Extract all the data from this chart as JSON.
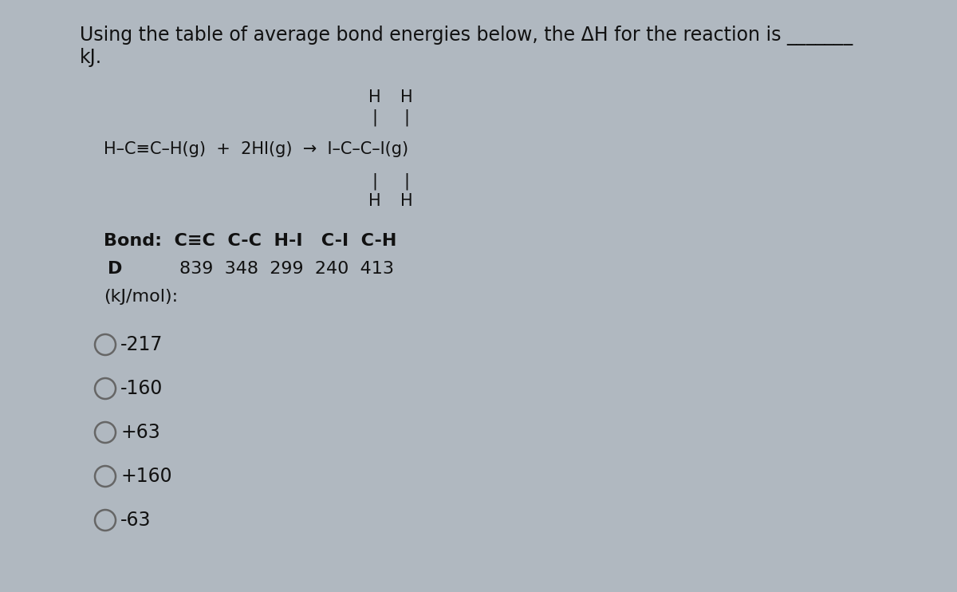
{
  "bg_outer": "#b0b8c0",
  "bg_inner": "#dde3e8",
  "text_color": "#111111",
  "title_line1": "Using the table of average bond energies below, the ΔH for the reaction is _______",
  "title_line2": "kJ.",
  "bond_row1": "Bond:  C≡C  C-C  H-I   C-I  C-H",
  "bond_row2_label": "D",
  "bond_row2_vals": "839  348  299  240  413",
  "bond_row3": "(kJ/mol):",
  "choices": [
    "-217",
    "-160",
    "+63",
    "+160",
    "-63"
  ],
  "fs_title": 17,
  "fs_body": 16,
  "fs_reaction": 15,
  "fs_choices": 17
}
